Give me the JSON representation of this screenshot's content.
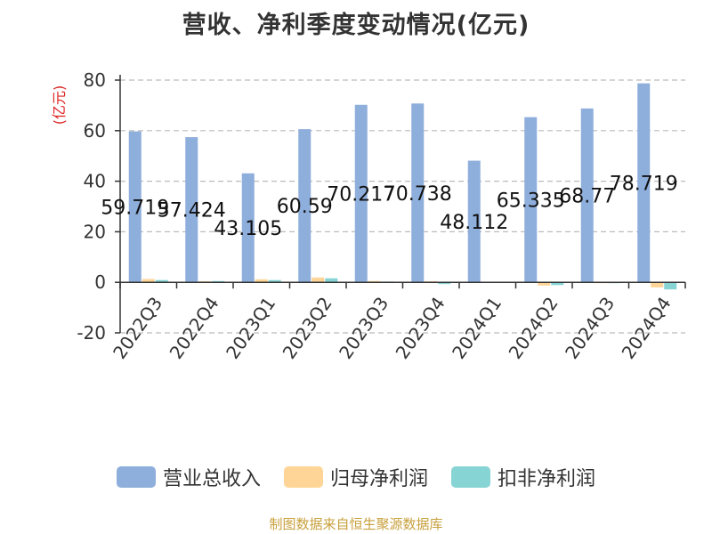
{
  "title": "营收、净利季度变动情况(亿元)",
  "source": "制图数据来自恒生聚源数据库",
  "colors": {
    "series": [
      "#8eaedc",
      "#ffd597",
      "#87d4d4"
    ],
    "axis": "#333333",
    "grid": "#bbbbbb",
    "unit_label": "#dd2222"
  },
  "chart_data": {
    "type": "bar",
    "title": "营收、净利季度变动情况(亿元)",
    "ylabel": "(亿元)",
    "ylim": [
      -20,
      80
    ],
    "yticks": [
      -20,
      0,
      20,
      40,
      60,
      80
    ],
    "grid": true,
    "legend_position": "bottom",
    "categories": [
      "2022Q3",
      "2022Q4",
      "2023Q1",
      "2023Q2",
      "2023Q3",
      "2023Q4",
      "2024Q1",
      "2024Q2",
      "2024Q3",
      "2024Q4"
    ],
    "series": [
      {
        "name": "营业总收入",
        "values": [
          59.719,
          57.424,
          43.105,
          60.59,
          70.217,
          70.738,
          48.112,
          65.335,
          68.77,
          78.719
        ],
        "labels": [
          "59.719",
          "57.424",
          "43.105",
          "60.59",
          "70.217",
          "70.738",
          "48.112",
          "65.335",
          "68.77",
          "78.719"
        ]
      },
      {
        "name": "归母净利润",
        "values": [
          1.3,
          0.4,
          1.2,
          1.9,
          0.5,
          0.4,
          0.2,
          -1.3,
          -0.2,
          -2.0
        ]
      },
      {
        "name": "扣非净利润",
        "values": [
          0.9,
          0.5,
          0.9,
          1.6,
          0.3,
          -0.7,
          0.2,
          -1.1,
          -0.2,
          -2.8
        ]
      }
    ]
  }
}
